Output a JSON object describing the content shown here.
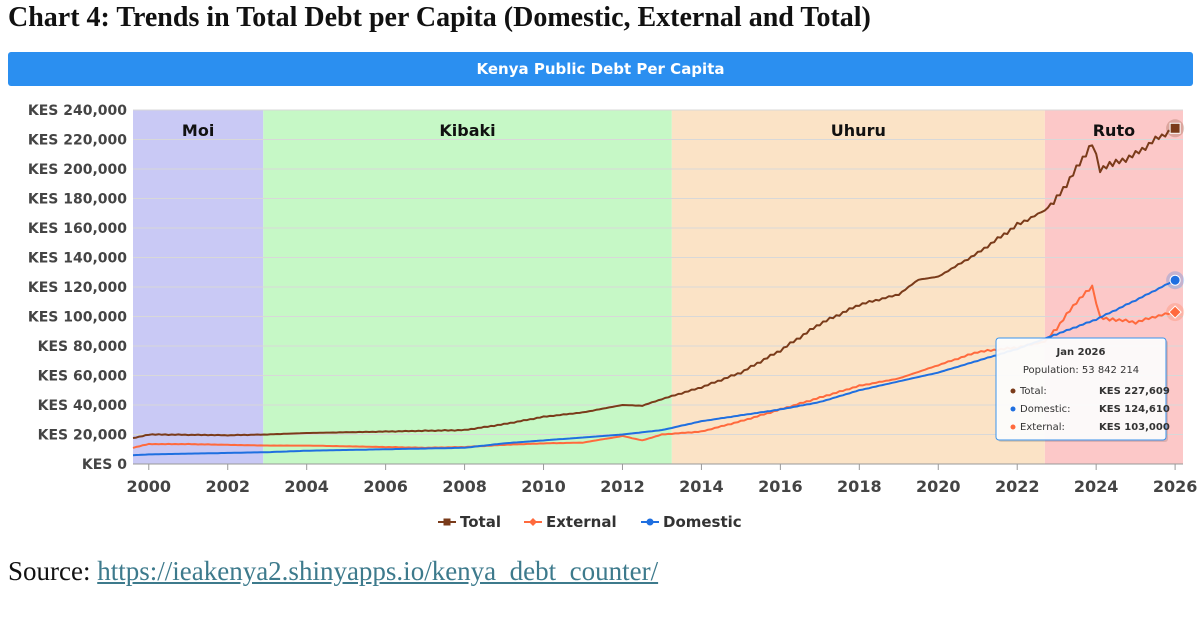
{
  "doc_title": "Chart 4: Trends in Total Debt per Capita (Domestic, External and Total)",
  "source": {
    "prefix": "Source: ",
    "link": "https://ieakenya2.shinyapps.io/kenya_debt_counter/"
  },
  "colors": {
    "total": "#7a3b1a",
    "external": "#ff6a3d",
    "domestic": "#1f6fe0",
    "moi_band": "#c9c9f5",
    "kibaki_band": "#c6f8c6",
    "uhuru_band": "#fbe3c6",
    "ruto_band": "#fcc8c8",
    "banner": "#2b8ff0"
  },
  "tooltip": {
    "date": "Jan 2026",
    "population": "Population: 53 842 214",
    "rows": [
      {
        "label": "Total:",
        "value": "KES 227,609",
        "series": "total"
      },
      {
        "label": "Domestic:",
        "value": "KES 124,610",
        "series": "domestic"
      },
      {
        "label": "External:",
        "value": "KES 103,000",
        "series": "external"
      }
    ]
  },
  "chart_data": {
    "type": "line",
    "title": "Kenya Public Debt Per Capita",
    "xlabel": "",
    "ylabel": "",
    "xlim": [
      1999.6,
      2026.2
    ],
    "ylim": [
      0,
      240000
    ],
    "y_ticks": [
      0,
      20000,
      40000,
      60000,
      80000,
      100000,
      120000,
      140000,
      160000,
      180000,
      200000,
      220000,
      240000
    ],
    "y_tick_labels": [
      "KES 0",
      "KES 20,000",
      "KES 40,000",
      "KES 60,000",
      "KES 80,000",
      "KES 100,000",
      "KES 120,000",
      "KES 140,000",
      "KES 160,000",
      "KES 180,000",
      "KES 200,000",
      "KES 220,000",
      "KES 240,000"
    ],
    "x_ticks": [
      2000,
      2002,
      2004,
      2006,
      2008,
      2010,
      2012,
      2014,
      2016,
      2018,
      2020,
      2022,
      2024,
      2026
    ],
    "x_tick_labels": [
      "2000",
      "2002",
      "2004",
      "2006",
      "2008",
      "2010",
      "2012",
      "2014",
      "2016",
      "2018",
      "2020",
      "2022",
      "2024",
      "2026"
    ],
    "grid": "horizontal",
    "legend_position": "bottom",
    "bands": [
      {
        "label": "Moi",
        "from": 1999.6,
        "to": 2002.9
      },
      {
        "label": "Kibaki",
        "from": 2002.9,
        "to": 2013.25
      },
      {
        "label": "Uhuru",
        "from": 2013.25,
        "to": 2022.7
      },
      {
        "label": "Ruto",
        "from": 2022.7,
        "to": 2026.2
      }
    ],
    "series": [
      {
        "name": "Total",
        "key": "total",
        "marker": "square",
        "x": [
          1999.6,
          2000.0,
          2001.0,
          2002.0,
          2003.0,
          2004.0,
          2005.0,
          2006.0,
          2007.0,
          2008.0,
          2009.0,
          2010.0,
          2011.0,
          2012.0,
          2012.5,
          2013.0,
          2014.0,
          2015.0,
          2016.0,
          2017.0,
          2018.0,
          2019.0,
          2019.5,
          2020.0,
          2021.0,
          2022.0,
          2022.7,
          2023.0,
          2023.5,
          2023.9,
          2024.1,
          2024.5,
          2025.0,
          2025.5,
          2026.0
        ],
        "y": [
          17500,
          20000,
          19800,
          19500,
          20000,
          21000,
          21500,
          22000,
          22500,
          23000,
          27000,
          32000,
          35000,
          40000,
          39500,
          44000,
          52000,
          62000,
          77000,
          95000,
          108000,
          115000,
          125000,
          127000,
          143000,
          162000,
          172000,
          180000,
          200000,
          218000,
          200000,
          204000,
          210000,
          220000,
          227609
        ]
      },
      {
        "name": "External",
        "key": "external",
        "marker": "diamond",
        "x": [
          1999.6,
          2000.0,
          2001.0,
          2002.0,
          2003.0,
          2004.0,
          2005.0,
          2006.0,
          2007.0,
          2008.0,
          2009.0,
          2010.0,
          2011.0,
          2012.0,
          2012.5,
          2013.0,
          2014.0,
          2015.0,
          2016.0,
          2017.0,
          2018.0,
          2019.0,
          2020.0,
          2021.0,
          2022.0,
          2022.7,
          2023.0,
          2023.5,
          2023.9,
          2024.1,
          2024.5,
          2025.0,
          2025.5,
          2026.0
        ],
        "y": [
          11000,
          13500,
          13500,
          13000,
          12500,
          12500,
          12000,
          11500,
          11000,
          11500,
          13000,
          14000,
          14500,
          19000,
          16000,
          20000,
          22000,
          29000,
          37000,
          45000,
          53000,
          58000,
          67000,
          76000,
          79000,
          83000,
          92000,
          110000,
          120000,
          99000,
          98000,
          96000,
          100000,
          103000
        ]
      },
      {
        "name": "Domestic",
        "key": "domestic",
        "marker": "circle",
        "x": [
          1999.6,
          2000.0,
          2001.0,
          2002.0,
          2003.0,
          2004.0,
          2005.0,
          2006.0,
          2007.0,
          2008.0,
          2009.0,
          2010.0,
          2011.0,
          2012.0,
          2013.0,
          2014.0,
          2015.0,
          2016.0,
          2017.0,
          2018.0,
          2019.0,
          2020.0,
          2021.0,
          2022.0,
          2022.7,
          2023.0,
          2024.0,
          2025.0,
          2026.0
        ],
        "y": [
          6000,
          6500,
          7000,
          7500,
          8000,
          9000,
          9500,
          10000,
          10500,
          11000,
          14000,
          16000,
          18000,
          20000,
          23000,
          29000,
          33000,
          37000,
          42000,
          50000,
          56000,
          62000,
          70000,
          78000,
          85000,
          88000,
          98000,
          111000,
          124610
        ]
      }
    ]
  }
}
